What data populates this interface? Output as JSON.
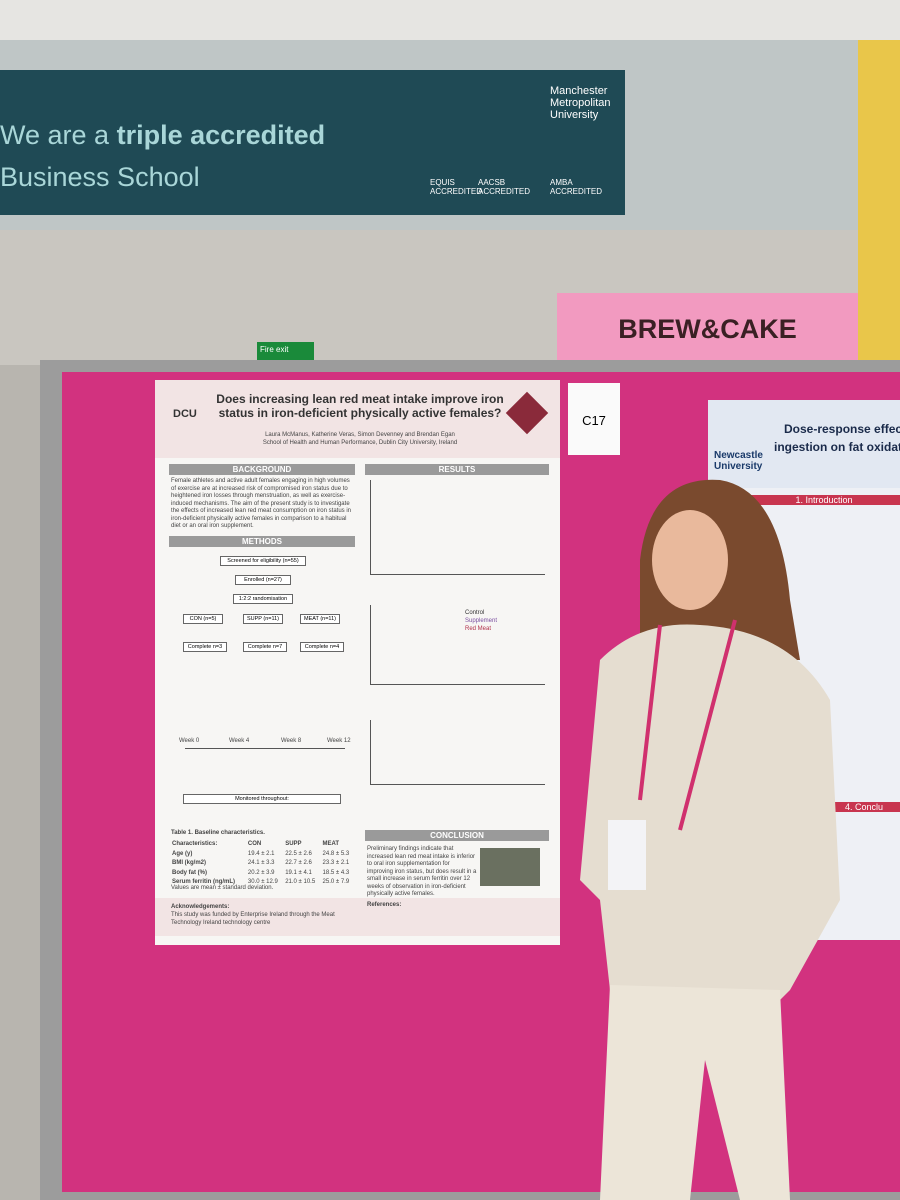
{
  "banner": {
    "line1_pre": "We are a",
    "line1_bold": "triple accredited",
    "line2": "Business School",
    "university": "Manchester Metropolitan University",
    "accreditations": [
      "EQUIS ACCREDITED",
      "AACSB ACCREDITED",
      "AMBA ACCREDITED"
    ]
  },
  "signs": {
    "cafe": "BREW&CAKE",
    "fire_exit": "Fire exit"
  },
  "board_label": "C17",
  "poster": {
    "logo": "DCU",
    "title": "Does increasing lean red meat intake improve iron status in iron-deficient physically active females?",
    "authors": "Laura McManus, Katherine Veras, Simon Devenney and Brendan Egan",
    "affiliation": "School of Health and Human Performance, Dublin City University, Ireland",
    "sections": {
      "background": "BACKGROUND",
      "methods": "METHODS",
      "results": "RESULTS",
      "conclusion": "CONCLUSION"
    },
    "background_text": "Female athletes and active adult females engaging in high volumes of exercise are at increased risk of compromised iron status due to heightened iron losses through menstruation, as well as exercise-induced mechanisms. The aim of the present study is to investigate the effects of increased lean red meat consumption on iron status in iron-deficient physically active females in comparison to a habitual diet or an oral iron supplement.",
    "flow": {
      "screened": "Screened for eligibility (n=55)",
      "enrolled": "Enrolled (n=27)",
      "randomisation": "1:2:2 randomisation",
      "groups": [
        "CON (n=5)",
        "SUPP (n=11)",
        "MEAT (n=11)"
      ],
      "complete": [
        "Complete n=3",
        "Complete n=7",
        "Complete n=4"
      ]
    },
    "weeks": [
      "Week 0",
      "Week 4",
      "Week 8",
      "Week 12"
    ],
    "monitored": "Monitored throughout:",
    "table": {
      "caption": "Table 1. Baseline characteristics.",
      "header": [
        "Characteristics:",
        "CON",
        "SUPP",
        "MEAT"
      ],
      "rows": [
        [
          "Age (y)",
          "19.4 ± 2.1",
          "22.5 ± 2.6",
          "24.8 ± 5.3"
        ],
        [
          "BMI (kg/m2)",
          "24.1 ± 3.3",
          "22.7 ± 2.6",
          "23.3 ± 2.1"
        ],
        [
          "Body fat (%)",
          "20.2 ± 3.9",
          "19.1 ± 4.1",
          "18.5 ± 4.3"
        ],
        [
          "Serum ferritin (ng/mL)",
          "30.0 ± 12.9",
          "21.0 ± 10.5",
          "25.0 ± 7.9"
        ]
      ],
      "note": "Values are mean ± standard deviation."
    },
    "legend": [
      "Control",
      "Supplement",
      "Red Meat"
    ],
    "conclusion_text": "Preliminary findings indicate that increased lean red meat intake is inferior to oral iron supplementation for improving iron status, but does result in a small increase in serum ferritin over 12 weeks of observation in iron-deficient physically active females.",
    "acknowledgements_title": "Acknowledgements:",
    "acknowledgements": "This study was funded by Enterprise Ireland through the Meat Technology Ireland technology centre",
    "references_title": "References:"
  },
  "right_poster": {
    "title_1": "Dose-response effect o",
    "title_2": "ingestion on fat oxidatio",
    "logo": "Newcastle University",
    "section_1": "1. Introduction",
    "section_4": "4. Conclu"
  }
}
